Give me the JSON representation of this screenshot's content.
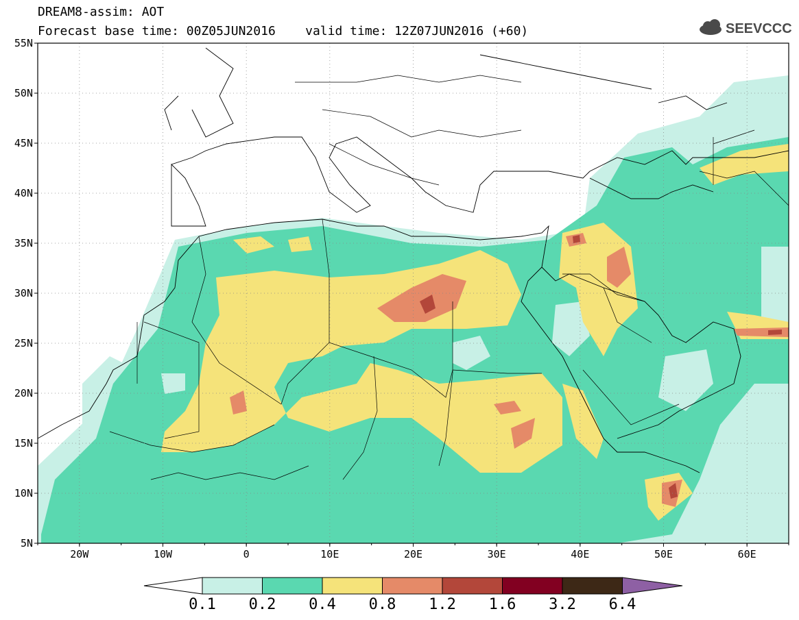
{
  "title": {
    "line1": "DREAM8-assim: AOT",
    "line2": "Forecast base time: 00Z05JUN2016    valid time: 12Z07JUN2016 (+60)"
  },
  "logo": {
    "text": "SEEVCCC",
    "icon": "cloud-icon"
  },
  "map": {
    "extent": {
      "lon": [
        -25,
        65
      ],
      "lat": [
        5,
        55
      ]
    },
    "lat_labels": [
      "5N",
      "10N",
      "15N",
      "20N",
      "25N",
      "30N",
      "35N",
      "40N",
      "45N",
      "50N",
      "55N"
    ],
    "lon_labels": [
      "20W",
      "10W",
      "0",
      "10E",
      "20E",
      "30E",
      "40E",
      "50E",
      "60E"
    ],
    "grid": "dotted"
  },
  "colorbar": {
    "labels": [
      "0.1",
      "0.2",
      "0.4",
      "0.8",
      "1.2",
      "1.6",
      "3.2",
      "6.4"
    ],
    "colors": [
      "#ffffff",
      "#c8f0e6",
      "#5ad8b0",
      "#f5e37a",
      "#e58a68",
      "#b3473a",
      "#820021",
      "#3d2816",
      "#8e60a4"
    ]
  }
}
